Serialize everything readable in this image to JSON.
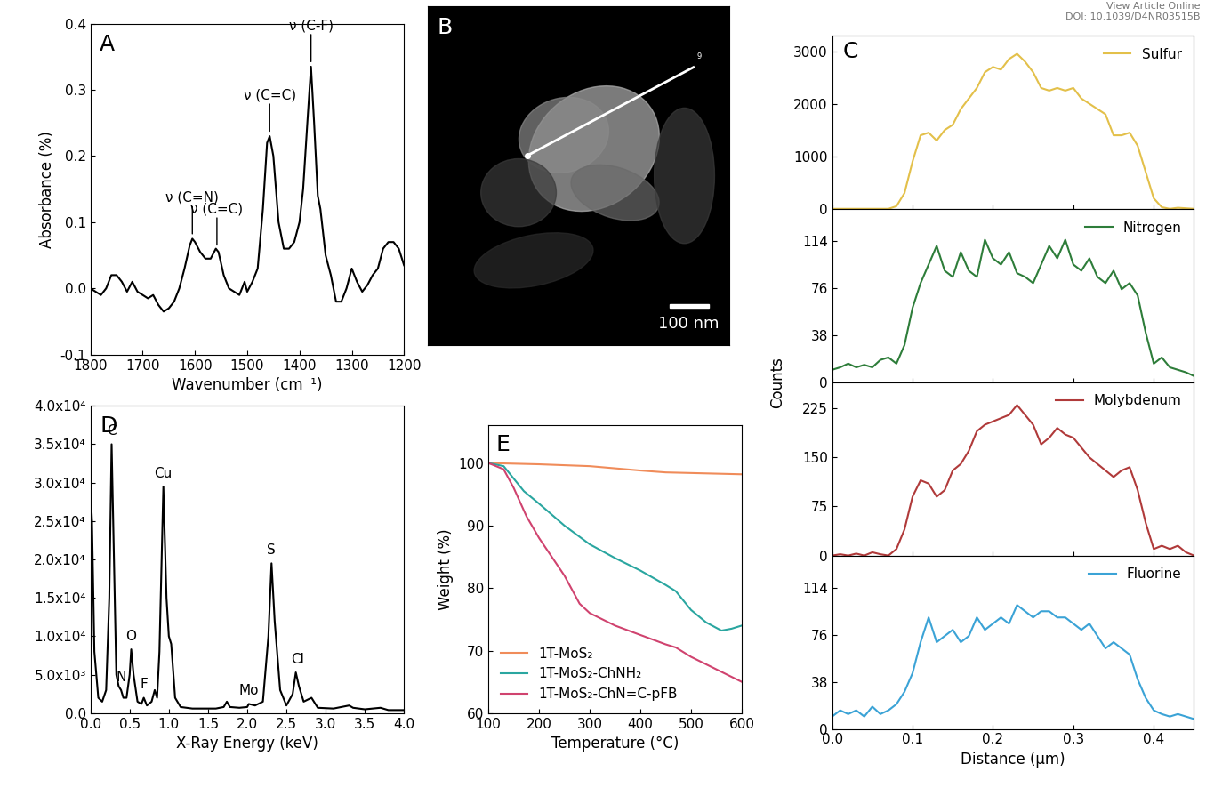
{
  "header": [
    "View Article Online",
    "DOI: 10.1039/D4NR03515B"
  ],
  "chart_data": [
    {
      "type": "line",
      "title": "A",
      "x_label": "Wavenumber (cm⁻¹)",
      "y_label": "Absorbance (%)",
      "xlim": [
        1800,
        1200
      ],
      "xticks": [
        1800,
        1700,
        1600,
        1500,
        1400,
        1300,
        1200
      ],
      "ylim": [
        -0.1,
        0.4
      ],
      "yticks": [
        -0.1,
        0.0,
        0.1,
        0.2,
        0.3,
        0.4
      ],
      "x": [
        1800,
        1790,
        1780,
        1770,
        1760,
        1750,
        1740,
        1730,
        1720,
        1710,
        1700,
        1690,
        1680,
        1670,
        1660,
        1650,
        1640,
        1630,
        1620,
        1610,
        1605,
        1600,
        1590,
        1580,
        1570,
        1560,
        1555,
        1545,
        1535,
        1525,
        1515,
        1505,
        1500,
        1490,
        1480,
        1470,
        1462,
        1457,
        1450,
        1440,
        1430,
        1420,
        1410,
        1400,
        1393,
        1385,
        1378,
        1372,
        1365,
        1360,
        1350,
        1340,
        1330,
        1320,
        1310,
        1300,
        1290,
        1280,
        1270,
        1260,
        1250,
        1240,
        1230,
        1220,
        1210,
        1200
      ],
      "values": [
        0.0,
        -0.005,
        -0.01,
        0.0,
        0.02,
        0.02,
        0.01,
        -0.005,
        0.01,
        -0.005,
        -0.01,
        -0.015,
        -0.01,
        -0.025,
        -0.035,
        -0.03,
        -0.02,
        0.0,
        0.03,
        0.065,
        0.075,
        0.07,
        0.055,
        0.045,
        0.045,
        0.06,
        0.055,
        0.02,
        0.0,
        -0.005,
        -0.01,
        0.01,
        -0.005,
        0.01,
        0.03,
        0.12,
        0.22,
        0.23,
        0.2,
        0.1,
        0.06,
        0.06,
        0.07,
        0.1,
        0.15,
        0.25,
        0.335,
        0.25,
        0.14,
        0.12,
        0.05,
        0.02,
        -0.02,
        -0.02,
        0.0,
        0.03,
        0.01,
        -0.005,
        0.005,
        0.02,
        0.03,
        0.06,
        0.07,
        0.07,
        0.06,
        0.035
      ],
      "color": "#000000",
      "annotations": [
        {
          "text": "ν (C=N)",
          "x": 1605,
          "y": 0.075
        },
        {
          "text": "ν (C=C)",
          "x": 1558,
          "y": 0.058
        },
        {
          "text": "ν (C=C)",
          "x": 1457,
          "y": 0.23
        },
        {
          "text": "ν (C-F)",
          "x": 1378,
          "y": 0.335
        }
      ]
    },
    {
      "type": "image",
      "title": "B",
      "tick_labels": false,
      "annotations": [
        "100 nm",
        "9"
      ]
    },
    {
      "type": "line",
      "title": "C",
      "tick_labels": "y",
      "legend": "upper right",
      "xlim": [
        0.0,
        0.45
      ],
      "xticks": [
        0.0,
        0.1,
        0.2,
        0.3,
        0.4
      ],
      "ylim": [
        0,
        3300
      ],
      "yticks": [
        0,
        1000,
        2000,
        3000
      ],
      "x": [
        0.0,
        0.01,
        0.02,
        0.03,
        0.04,
        0.05,
        0.06,
        0.07,
        0.08,
        0.09,
        0.1,
        0.11,
        0.12,
        0.13,
        0.14,
        0.15,
        0.16,
        0.17,
        0.18,
        0.19,
        0.2,
        0.21,
        0.22,
        0.23,
        0.24,
        0.25,
        0.26,
        0.27,
        0.28,
        0.29,
        0.3,
        0.31,
        0.32,
        0.33,
        0.34,
        0.35,
        0.36,
        0.37,
        0.38,
        0.39,
        0.4,
        0.41,
        0.42,
        0.43,
        0.44,
        0.45
      ],
      "series": [
        {
          "name": "Sulfur",
          "color": "#e3c04a",
          "values": [
            0,
            0,
            0,
            0,
            0,
            0,
            0,
            0,
            50,
            300,
            900,
            1400,
            1450,
            1300,
            1500,
            1600,
            1900,
            2100,
            2300,
            2600,
            2700,
            2650,
            2850,
            2950,
            2800,
            2600,
            2300,
            2250,
            2300,
            2250,
            2300,
            2100,
            2000,
            1900,
            1800,
            1400,
            1400,
            1450,
            1200,
            700,
            200,
            30,
            0,
            20,
            10,
            0
          ]
        }
      ]
    },
    {
      "type": "line",
      "y_label": "Counts",
      "tick_labels": "y",
      "legend": "upper right",
      "xlim": [
        0.0,
        0.45
      ],
      "xticks": [
        0.0,
        0.1,
        0.2,
        0.3,
        0.4
      ],
      "ylim": [
        0,
        140
      ],
      "yticks": [
        0,
        38,
        76,
        114
      ],
      "x": [
        0.0,
        0.01,
        0.02,
        0.03,
        0.04,
        0.05,
        0.06,
        0.07,
        0.08,
        0.09,
        0.1,
        0.11,
        0.12,
        0.13,
        0.14,
        0.15,
        0.16,
        0.17,
        0.18,
        0.19,
        0.2,
        0.21,
        0.22,
        0.23,
        0.24,
        0.25,
        0.26,
        0.27,
        0.28,
        0.29,
        0.3,
        0.31,
        0.32,
        0.33,
        0.34,
        0.35,
        0.36,
        0.37,
        0.38,
        0.39,
        0.4,
        0.41,
        0.42,
        0.43,
        0.44,
        0.45
      ],
      "series": [
        {
          "name": "Nitrogen",
          "color": "#2e7d3a",
          "values": [
            10,
            12,
            15,
            12,
            14,
            12,
            18,
            20,
            15,
            30,
            60,
            80,
            95,
            110,
            90,
            85,
            105,
            90,
            85,
            115,
            100,
            95,
            105,
            88,
            85,
            80,
            95,
            110,
            100,
            115,
            95,
            90,
            100,
            85,
            80,
            90,
            75,
            80,
            70,
            40,
            15,
            20,
            12,
            10,
            8,
            5
          ]
        }
      ]
    },
    {
      "type": "line",
      "tick_labels": "y",
      "legend": "upper right",
      "xlim": [
        0.0,
        0.45
      ],
      "xticks": [
        0.0,
        0.1,
        0.2,
        0.3,
        0.4
      ],
      "ylim": [
        0,
        265
      ],
      "yticks": [
        0,
        75,
        150,
        225
      ],
      "x": [
        0.0,
        0.01,
        0.02,
        0.03,
        0.04,
        0.05,
        0.06,
        0.07,
        0.08,
        0.09,
        0.1,
        0.11,
        0.12,
        0.13,
        0.14,
        0.15,
        0.16,
        0.17,
        0.18,
        0.19,
        0.2,
        0.21,
        0.22,
        0.23,
        0.24,
        0.25,
        0.26,
        0.27,
        0.28,
        0.29,
        0.3,
        0.31,
        0.32,
        0.33,
        0.34,
        0.35,
        0.36,
        0.37,
        0.38,
        0.39,
        0.4,
        0.41,
        0.42,
        0.43,
        0.44,
        0.45
      ],
      "series": [
        {
          "name": "Molybdenum",
          "color": "#b03a3a",
          "values": [
            0,
            2,
            0,
            3,
            0,
            5,
            2,
            0,
            10,
            40,
            90,
            115,
            110,
            90,
            100,
            130,
            140,
            160,
            190,
            200,
            205,
            210,
            215,
            230,
            215,
            200,
            170,
            180,
            195,
            185,
            180,
            165,
            150,
            140,
            130,
            120,
            130,
            135,
            100,
            50,
            10,
            15,
            10,
            15,
            5,
            0
          ]
        }
      ]
    },
    {
      "type": "line",
      "x_label": "Distance (µm)",
      "legend": "upper right",
      "xlim": [
        0.0,
        0.45
      ],
      "xticks": [
        0.0,
        0.1,
        0.2,
        0.3,
        0.4
      ],
      "ylim": [
        0,
        140
      ],
      "yticks": [
        0,
        38,
        76,
        114
      ],
      "x": [
        0.0,
        0.01,
        0.02,
        0.03,
        0.04,
        0.05,
        0.06,
        0.07,
        0.08,
        0.09,
        0.1,
        0.11,
        0.12,
        0.13,
        0.14,
        0.15,
        0.16,
        0.17,
        0.18,
        0.19,
        0.2,
        0.21,
        0.22,
        0.23,
        0.24,
        0.25,
        0.26,
        0.27,
        0.28,
        0.29,
        0.3,
        0.31,
        0.32,
        0.33,
        0.34,
        0.35,
        0.36,
        0.37,
        0.38,
        0.39,
        0.4,
        0.41,
        0.42,
        0.43,
        0.44,
        0.45
      ],
      "series": [
        {
          "name": "Fluorine",
          "color": "#3ba3d6",
          "values": [
            10,
            15,
            12,
            15,
            10,
            18,
            12,
            15,
            20,
            30,
            45,
            70,
            90,
            70,
            75,
            80,
            70,
            75,
            90,
            80,
            85,
            90,
            85,
            100,
            95,
            90,
            95,
            95,
            90,
            90,
            85,
            80,
            85,
            75,
            65,
            70,
            65,
            60,
            40,
            25,
            15,
            12,
            10,
            12,
            10,
            8
          ]
        }
      ]
    },
    {
      "type": "line",
      "title": "D",
      "x_label": "X-Ray Energy (keV)",
      "xlim": [
        0.0,
        4.0
      ],
      "xticks": [
        0.0,
        0.5,
        1.0,
        1.5,
        2.0,
        2.5,
        3.0,
        3.5,
        4.0
      ],
      "ylim": [
        0,
        40000
      ],
      "yticks": [
        {
          "value": 0,
          "label": "0.0"
        },
        {
          "value": 5000,
          "label": "5.0x10³"
        },
        {
          "value": 10000,
          "label": "1.0x10⁴"
        },
        {
          "value": 15000,
          "label": "1.5x10⁴"
        },
        {
          "value": 20000,
          "label": "2.0x10⁴"
        },
        {
          "value": 25000,
          "label": "2.5x10⁴"
        },
        {
          "value": 30000,
          "label": "3.0x10⁴"
        },
        {
          "value": 35000,
          "label": "3.5x10⁴"
        },
        {
          "value": 40000,
          "label": "4.0x10⁴"
        }
      ],
      "x": [
        0.0,
        0.02,
        0.05,
        0.1,
        0.15,
        0.2,
        0.24,
        0.27,
        0.3,
        0.33,
        0.36,
        0.39,
        0.42,
        0.46,
        0.5,
        0.52,
        0.55,
        0.6,
        0.65,
        0.68,
        0.72,
        0.78,
        0.82,
        0.85,
        0.88,
        0.93,
        0.97,
        1.0,
        1.03,
        1.08,
        1.15,
        1.3,
        1.5,
        1.6,
        1.7,
        1.74,
        1.78,
        1.9,
        2.0,
        2.02,
        2.1,
        2.2,
        2.27,
        2.31,
        2.35,
        2.42,
        2.5,
        2.58,
        2.62,
        2.66,
        2.72,
        2.82,
        2.9,
        3.1,
        3.3,
        3.35,
        3.5,
        3.7,
        3.8,
        4.0
      ],
      "values": [
        29000,
        25000,
        8000,
        2000,
        1500,
        3000,
        15000,
        35000,
        20000,
        5000,
        3500,
        3000,
        2000,
        2000,
        5000,
        8300,
        5000,
        1500,
        1200,
        2000,
        1000,
        1500,
        3000,
        2000,
        8000,
        29500,
        15000,
        10000,
        9000,
        2000,
        800,
        600,
        600,
        600,
        800,
        1500,
        800,
        700,
        800,
        1200,
        1000,
        1500,
        10000,
        19500,
        12000,
        3000,
        1000,
        2500,
        5300,
        3500,
        1500,
        2000,
        700,
        600,
        1000,
        700,
        500,
        700,
        400,
        400
      ],
      "color": "#000000",
      "annotations": [
        {
          "text": "C",
          "x": 0.27,
          "y": 35500
        },
        {
          "text": "N",
          "x": 0.39,
          "y": 3500
        },
        {
          "text": "O",
          "x": 0.52,
          "y": 8800
        },
        {
          "text": "F",
          "x": 0.68,
          "y": 2500
        },
        {
          "text": "Cu",
          "x": 0.93,
          "y": 30000
        },
        {
          "text": "Mo",
          "x": 2.02,
          "y": 1700
        },
        {
          "text": "S",
          "x": 2.31,
          "y": 20000
        },
        {
          "text": "Cl",
          "x": 2.64,
          "y": 5800
        }
      ]
    },
    {
      "type": "line",
      "title": "E",
      "x_label": "Temperature (°C)",
      "y_label": "Weight (%)",
      "legend": "lower left",
      "xlim": [
        100,
        600
      ],
      "xticks": [
        100,
        200,
        300,
        400,
        500,
        600
      ],
      "ylim": [
        60,
        106
      ],
      "yticks": [
        60,
        70,
        80,
        90,
        100
      ],
      "series": [
        {
          "name": "1T-MoS₂",
          "color": "#f08c5a",
          "x": [
            100,
            200,
            300,
            400,
            450,
            500,
            600
          ],
          "values": [
            100,
            99.8,
            99.5,
            98.8,
            98.5,
            98.4,
            98.2
          ]
        },
        {
          "name": "1T-MoS₂-ChNH₂",
          "color": "#2aa6a0",
          "x": [
            100,
            130,
            150,
            170,
            200,
            250,
            300,
            350,
            400,
            450,
            470,
            500,
            530,
            560,
            580,
            600
          ],
          "values": [
            100,
            99.5,
            97.5,
            95.5,
            93.5,
            90,
            87,
            84.8,
            82.8,
            80.5,
            79.5,
            76.5,
            74.5,
            73.2,
            73.5,
            74
          ]
        },
        {
          "name": "1T-MoS₂-ChN=C-pFB",
          "color": "#d0436f",
          "x": [
            100,
            130,
            150,
            175,
            200,
            250,
            280,
            300,
            350,
            400,
            450,
            470,
            500,
            550,
            600
          ],
          "values": [
            100,
            99,
            96,
            91.5,
            88,
            82,
            77.5,
            76,
            74,
            72.5,
            71,
            70.5,
            69,
            67,
            65
          ]
        }
      ]
    }
  ]
}
